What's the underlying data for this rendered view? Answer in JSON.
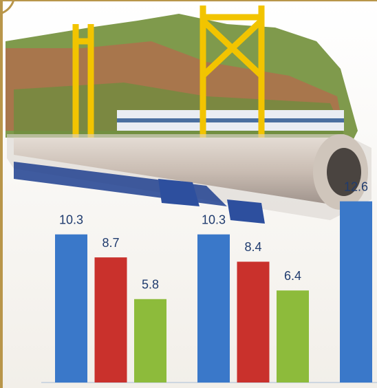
{
  "chart_data": {
    "type": "bar",
    "categories": [
      null,
      null,
      null
    ],
    "series": [
      {
        "color": "#3a78c9",
        "values": [
          10.3,
          10.3,
          12.6
        ]
      },
      {
        "color": "#c9312c",
        "values": [
          8.7,
          8.4,
          null
        ]
      },
      {
        "color": "#8dbb3b",
        "values": [
          5.8,
          6.4,
          null
        ]
      }
    ],
    "ylim": [
      0,
      26.6
    ]
  }
}
